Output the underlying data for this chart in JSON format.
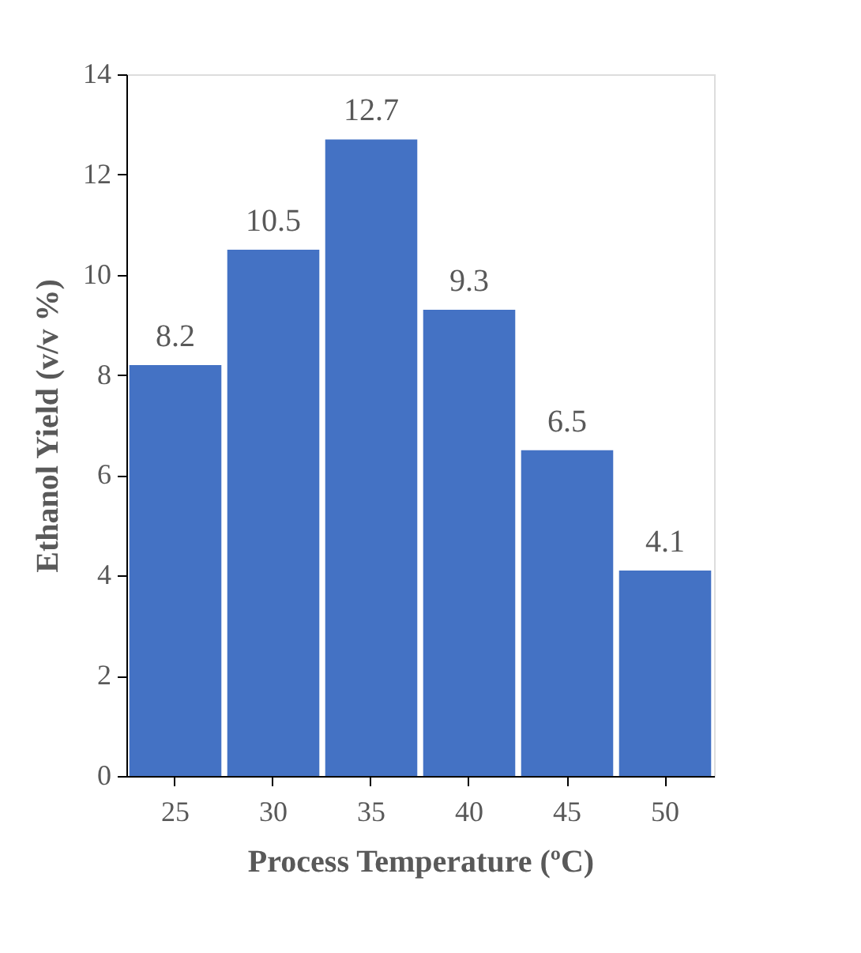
{
  "chart_data": {
    "type": "bar",
    "xlabel": "Process Temperature (ºC)",
    "ylabel": "Ethanol Yield (v/v %)",
    "categories": [
      "25",
      "30",
      "35",
      "40",
      "45",
      "50"
    ],
    "values": [
      8.2,
      10.5,
      12.7,
      9.3,
      6.5,
      4.1
    ],
    "color": "#4472c4",
    "ylim": [
      0,
      14
    ],
    "yticks": [
      0,
      2,
      4,
      6,
      8,
      10,
      12,
      14
    ],
    "grid": false,
    "data_labels": true
  }
}
